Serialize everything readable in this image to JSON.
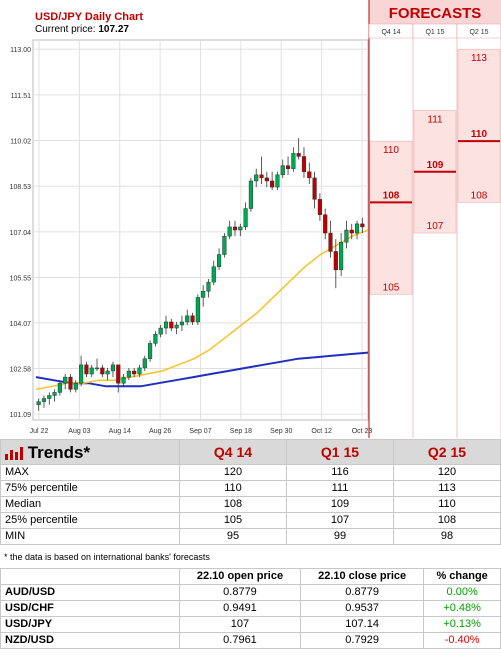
{
  "chart_data": {
    "type": "candlestick",
    "title": "USD/JPY Daily Chart",
    "current_price_label": "Current price:",
    "current_price": "107.27",
    "y_ticks": [
      "113.00",
      "111.51",
      "110.02",
      "108.53",
      "107.04",
      "105.55",
      "104.07",
      "102.58",
      "101.09"
    ],
    "ylim": [
      100.9,
      113.3
    ],
    "x_ticks": [
      "Jul 22",
      "Aug 03",
      "Aug 14",
      "Aug 26",
      "Sep 07",
      "Sep 18",
      "Sep 30",
      "Oct 12",
      "Oct 23"
    ],
    "ohlc": [
      [
        101.4,
        101.6,
        101.2,
        101.5
      ],
      [
        101.5,
        101.7,
        101.3,
        101.6
      ],
      [
        101.6,
        101.8,
        101.4,
        101.7
      ],
      [
        101.7,
        101.9,
        101.5,
        101.8
      ],
      [
        101.8,
        102.2,
        101.7,
        102.1
      ],
      [
        102.1,
        102.4,
        101.9,
        102.3
      ],
      [
        102.3,
        102.4,
        101.8,
        101.9
      ],
      [
        101.9,
        102.2,
        101.8,
        102.1
      ],
      [
        102.1,
        103.0,
        102.0,
        102.7
      ],
      [
        102.7,
        102.8,
        102.3,
        102.4
      ],
      [
        102.4,
        102.7,
        102.3,
        102.6
      ],
      [
        102.6,
        102.9,
        102.5,
        102.6
      ],
      [
        102.6,
        102.7,
        102.3,
        102.4
      ],
      [
        102.4,
        102.6,
        102.2,
        102.5
      ],
      [
        102.5,
        102.8,
        102.3,
        102.7
      ],
      [
        102.7,
        102.7,
        101.8,
        102.1
      ],
      [
        102.1,
        102.4,
        102.0,
        102.3
      ],
      [
        102.3,
        102.6,
        102.2,
        102.5
      ],
      [
        102.5,
        102.6,
        102.3,
        102.4
      ],
      [
        102.4,
        102.7,
        102.3,
        102.6
      ],
      [
        102.6,
        103.0,
        102.5,
        102.9
      ],
      [
        102.9,
        103.5,
        102.8,
        103.4
      ],
      [
        103.4,
        103.8,
        103.3,
        103.7
      ],
      [
        103.7,
        104.0,
        103.6,
        103.9
      ],
      [
        103.9,
        104.3,
        103.7,
        104.1
      ],
      [
        104.1,
        104.2,
        103.8,
        103.9
      ],
      [
        103.9,
        104.1,
        103.7,
        104.0
      ],
      [
        104.0,
        104.3,
        103.8,
        104.1
      ],
      [
        104.1,
        104.5,
        104.0,
        104.3
      ],
      [
        104.3,
        104.4,
        104.0,
        104.1
      ],
      [
        104.1,
        105.0,
        104.0,
        104.9
      ],
      [
        104.9,
        105.3,
        104.6,
        105.1
      ],
      [
        105.1,
        105.5,
        104.9,
        105.4
      ],
      [
        105.4,
        106.1,
        105.3,
        105.9
      ],
      [
        105.9,
        106.5,
        105.8,
        106.3
      ],
      [
        106.3,
        107.0,
        106.2,
        106.9
      ],
      [
        106.9,
        107.4,
        106.8,
        107.2
      ],
      [
        107.2,
        107.4,
        106.9,
        107.1
      ],
      [
        107.1,
        107.3,
        106.9,
        107.2
      ],
      [
        107.2,
        108.0,
        107.1,
        107.8
      ],
      [
        107.8,
        108.8,
        107.7,
        108.7
      ],
      [
        108.7,
        109.1,
        108.5,
        108.9
      ],
      [
        108.9,
        109.5,
        108.6,
        108.8
      ],
      [
        108.8,
        109.0,
        108.5,
        108.7
      ],
      [
        108.7,
        109.0,
        108.4,
        108.5
      ],
      [
        108.5,
        109.0,
        108.4,
        108.9
      ],
      [
        108.9,
        109.4,
        108.8,
        109.2
      ],
      [
        109.2,
        109.5,
        108.9,
        109.1
      ],
      [
        109.1,
        109.8,
        109.0,
        109.6
      ],
      [
        109.6,
        110.1,
        109.4,
        109.5
      ],
      [
        109.5,
        109.8,
        108.8,
        109.0
      ],
      [
        109.0,
        109.3,
        108.6,
        108.8
      ],
      [
        108.8,
        109.0,
        107.8,
        108.1
      ],
      [
        108.1,
        108.3,
        107.4,
        107.6
      ],
      [
        107.6,
        107.8,
        106.8,
        107.0
      ],
      [
        107.0,
        107.4,
        106.2,
        106.4
      ],
      [
        106.4,
        106.8,
        105.2,
        105.8
      ],
      [
        105.8,
        107.0,
        105.6,
        106.7
      ],
      [
        106.7,
        107.4,
        106.5,
        107.1
      ],
      [
        107.1,
        107.3,
        106.8,
        107.0
      ],
      [
        107.0,
        107.4,
        106.8,
        107.3
      ],
      [
        107.3,
        107.5,
        107.0,
        107.2
      ]
    ],
    "ma_short": [
      101.9,
      102.0,
      102.1,
      102.1,
      102.2,
      102.2,
      102.3,
      102.4,
      102.5,
      102.7,
      102.9,
      103.2,
      103.6,
      104.0,
      104.4,
      104.9,
      105.4,
      105.9,
      106.3,
      106.6,
      106.9,
      107.1
    ],
    "ma_long": [
      102.3,
      102.2,
      102.1,
      102.1,
      102.0,
      102.0,
      102.0,
      102.1,
      102.2,
      102.3,
      102.4,
      102.5,
      102.6,
      102.7,
      102.8,
      102.9,
      102.95,
      103.0,
      103.05,
      103.1
    ],
    "forecasts_title": "FORECASTS",
    "forecast_cols": [
      {
        "name": "Q4 14",
        "max": "110",
        "median": "108",
        "min": "105",
        "vmax": 110,
        "vmed": 108,
        "vmin": 105
      },
      {
        "name": "Q1 15",
        "max": "111",
        "median": "109",
        "min": "107",
        "vmax": 111,
        "vmed": 109,
        "vmin": 107
      },
      {
        "name": "Q2 15",
        "max": "113",
        "median": "110",
        "min": "108",
        "vmax": 113,
        "vmed": 110,
        "vmin": 108
      }
    ]
  },
  "trends": {
    "title": "Trends*",
    "columns": [
      "Q4 14",
      "Q1 15",
      "Q2 15"
    ],
    "rows": [
      {
        "label": "MAX",
        "values": [
          "120",
          "116",
          "120"
        ]
      },
      {
        "label": "75% percentile",
        "values": [
          "110",
          "111",
          "113"
        ]
      },
      {
        "label": "Median",
        "values": [
          "108",
          "109",
          "110"
        ]
      },
      {
        "label": "25% percentile",
        "values": [
          "105",
          "107",
          "108"
        ]
      },
      {
        "label": "MIN",
        "values": [
          "95",
          "99",
          "98"
        ]
      }
    ],
    "note": "* the data is based on international banks' forecasts"
  },
  "fx": {
    "headers": [
      "22.10 open price",
      "22.10 close price",
      "% change"
    ],
    "rows": [
      {
        "pair": "AUD/USD",
        "open": "0.8779",
        "close": "0.8779",
        "change": "0.00%",
        "dir": "pos"
      },
      {
        "pair": "USD/CHF",
        "open": "0.9491",
        "close": "0.9537",
        "change": "+0.48%",
        "dir": "pos"
      },
      {
        "pair": "USD/JPY",
        "open": "107",
        "close": "107.14",
        "change": "+0.13%",
        "dir": "pos"
      },
      {
        "pair": "NZD/USD",
        "open": "0.7961",
        "close": "0.7929",
        "change": "-0.40%",
        "dir": "neg"
      }
    ]
  },
  "colors": {
    "bull": "#00a651",
    "bear": "#c00000",
    "ma_short": "#f7c325",
    "ma_long": "#1f2fbf",
    "forecast": "#c00000"
  }
}
